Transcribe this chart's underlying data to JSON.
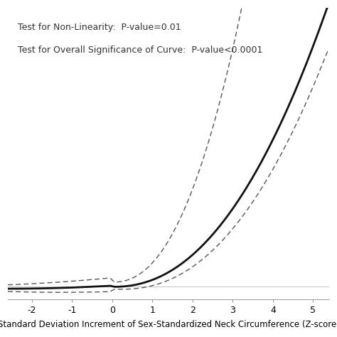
{
  "title_line1": "Test for Non-Linearity:  P-value=0.01",
  "title_line2": "Test for Overall Significance of Curve:  P-value<0.0001",
  "xlabel": "Standard Deviation Increment of Sex-Standardized Neck Circumference (Z-score)",
  "xlim": [
    -2.6,
    5.4
  ],
  "ylim": [
    -0.08,
    1.8
  ],
  "x_ticks": [
    -2,
    -1,
    0,
    1,
    2,
    3,
    4,
    5
  ],
  "annotation_fontsize": 9.0,
  "xlabel_fontsize": 8.5,
  "tick_fontsize": 9.0,
  "background_color": "#ffffff",
  "line_color": "#111111",
  "ci_color": "#555555"
}
